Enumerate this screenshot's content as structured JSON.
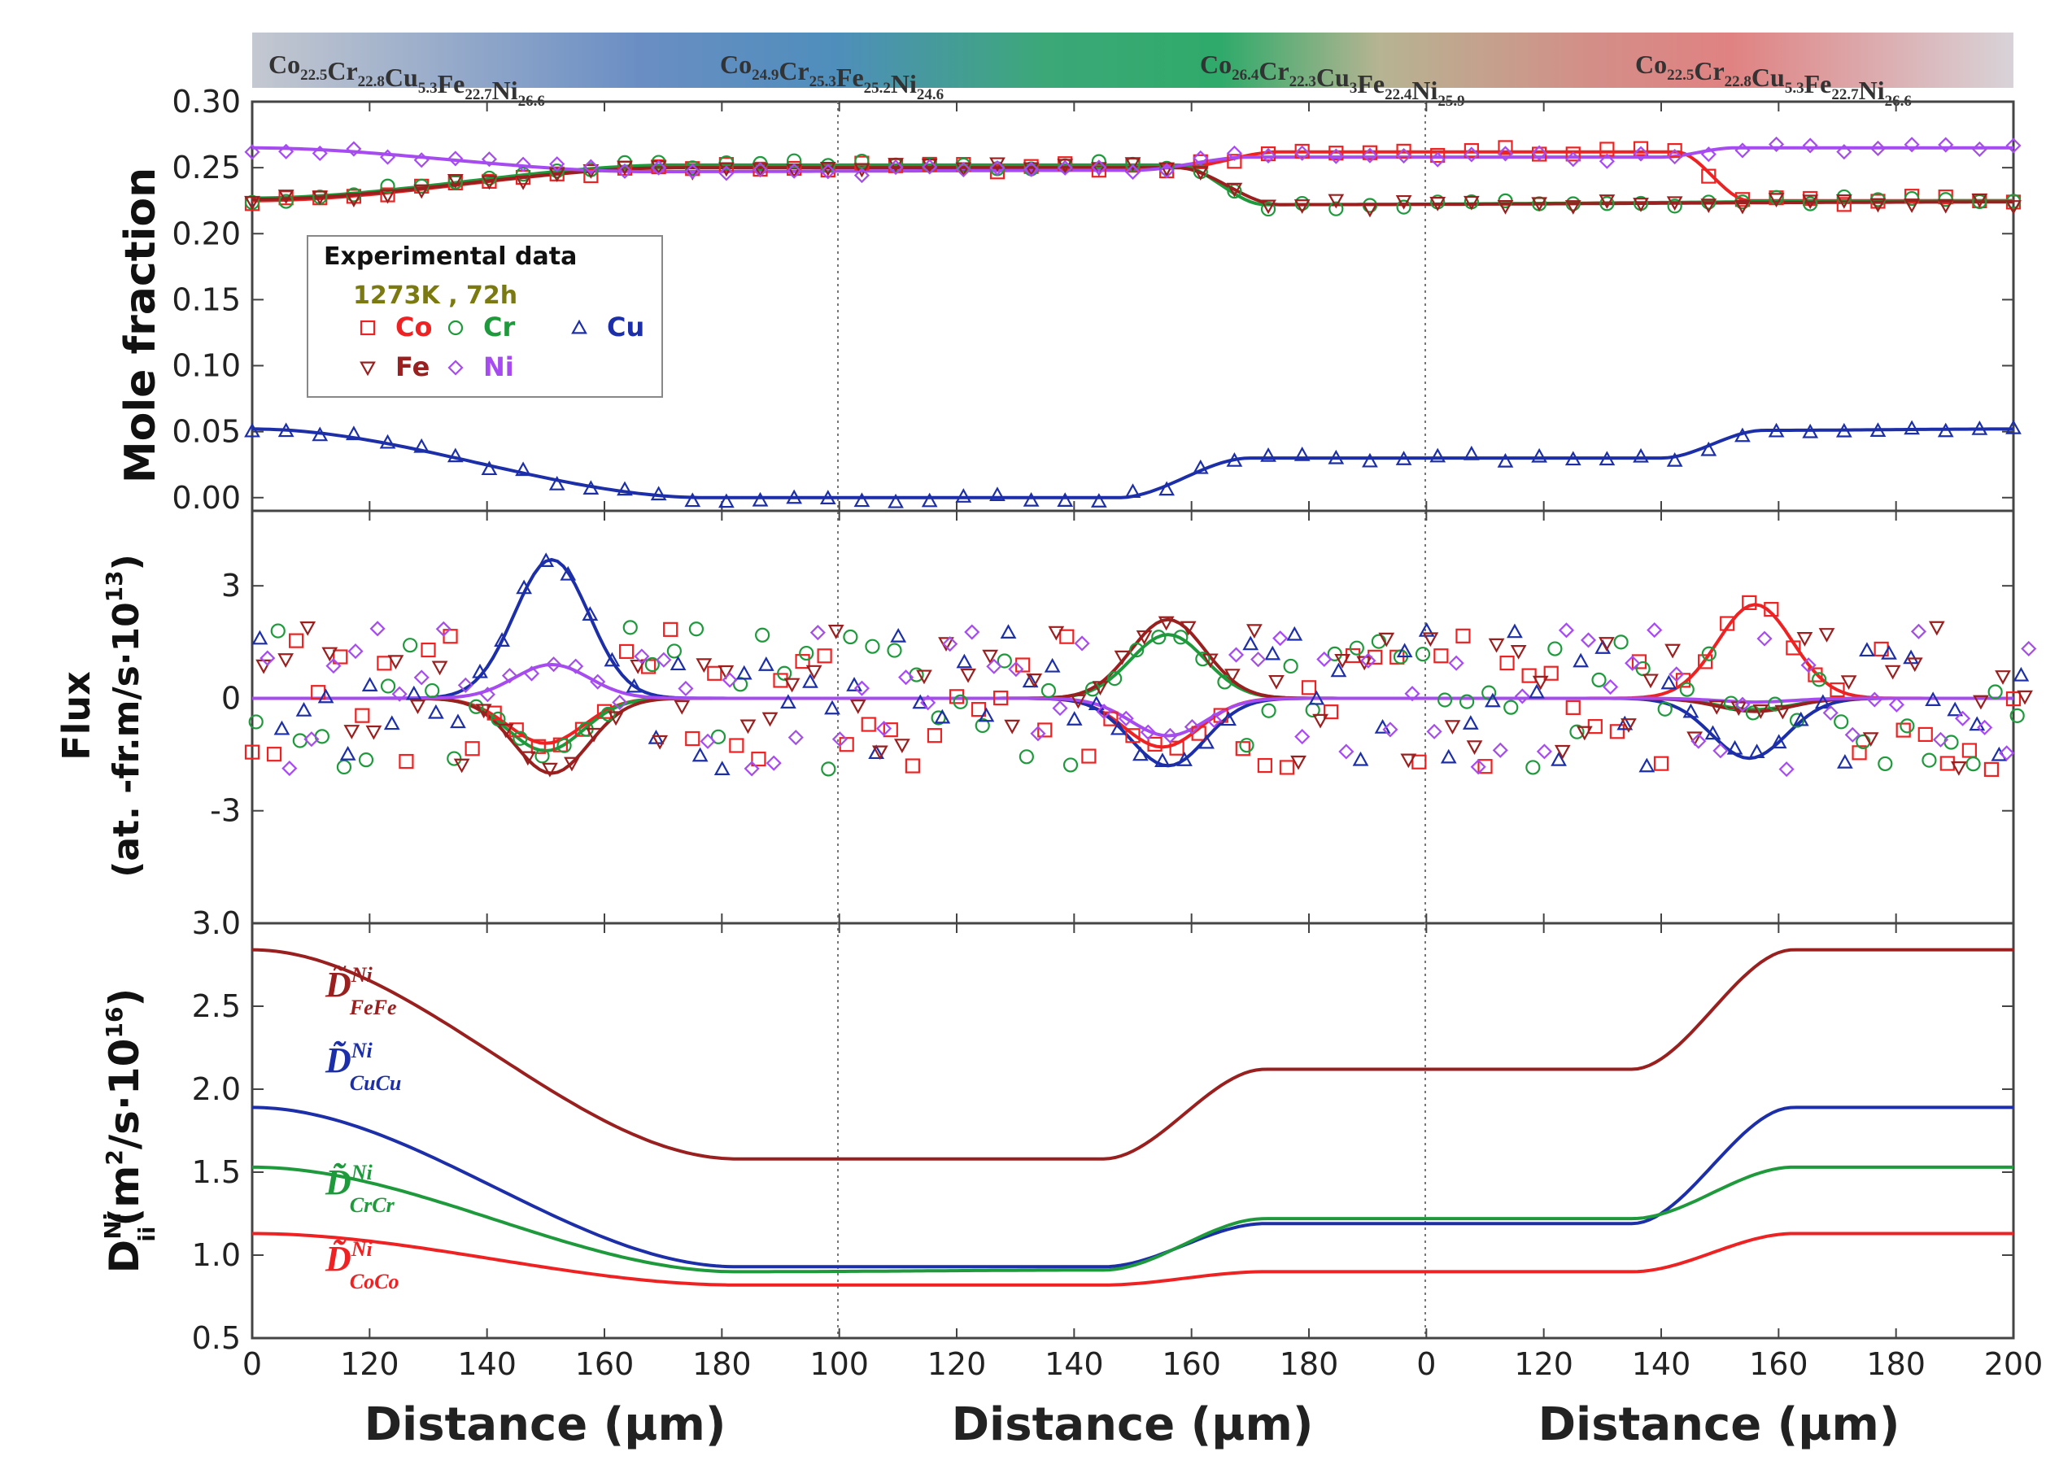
{
  "colors": {
    "Co": "#ee2222",
    "Cr": "#1e9a3c",
    "Cu": "#1c2fa8",
    "Fe": "#9a1f1f",
    "Ni": "#a64bf0",
    "legend_title": "#7a7a10"
  },
  "chart_data": [
    {
      "type": "line",
      "panel": "mole-fraction",
      "x_tick_labels": [
        "0",
        "120",
        "140",
        "160",
        "180",
        "100",
        "120",
        "140",
        "160",
        "180",
        "0",
        "120",
        "140",
        "160",
        "180",
        "200"
      ],
      "xlabels": [
        "Distance (µm)",
        "Distance (µm)",
        "Distance (µm)"
      ],
      "ylabel": "Mole fraction",
      "ylim": [
        -0.01,
        0.3
      ],
      "y_ticks": [
        0.0,
        0.05,
        0.1,
        0.15,
        0.2,
        0.25,
        0.3
      ],
      "y_tick_labels": [
        "0.00",
        "0.05",
        "0.10",
        "0.15",
        "0.20",
        "0.25",
        "0.30"
      ],
      "composition_labels": [
        {
          "parts": [
            [
              "Co",
              "22.5"
            ],
            [
              "Cr",
              "22.8"
            ],
            [
              "Cu",
              "5.3"
            ],
            [
              "Fe",
              "22.7"
            ],
            [
              "Ni",
              "26.6"
            ]
          ]
        },
        {
          "parts": [
            [
              "Co",
              "24.9"
            ],
            [
              "Cr",
              "25.3"
            ],
            [
              "Fe",
              "25.2"
            ],
            [
              "Ni",
              "24.6"
            ]
          ]
        },
        {
          "parts": [
            [
              "Co",
              "26.4"
            ],
            [
              "Cr",
              "22.3"
            ],
            [
              "Cu",
              "3"
            ],
            [
              "Fe",
              "22.4"
            ],
            [
              "Ni",
              "25.9"
            ]
          ]
        },
        {
          "parts": [
            [
              "Co",
              "22.5"
            ],
            [
              "Cr",
              "22.8"
            ],
            [
              "Cu",
              "5.3"
            ],
            [
              "Fe",
              "22.7"
            ],
            [
              "Ni",
              "26.6"
            ]
          ]
        }
      ],
      "legend": {
        "title": "Experimental data",
        "conditions": "1273K , 72h",
        "entries": [
          {
            "name": "Co",
            "marker": "square"
          },
          {
            "name": "Cr",
            "marker": "circle"
          },
          {
            "name": "Cu",
            "marker": "triangle-up"
          },
          {
            "name": "Fe",
            "marker": "triangle-down"
          },
          {
            "name": "Ni",
            "marker": "diamond"
          }
        ]
      },
      "x_domain": [
        0,
        600
      ],
      "series": [
        {
          "name": "Co",
          "profile": [
            [
              0,
              0.225
            ],
            [
              145,
              0.25
            ],
            [
              315,
              0.25
            ],
            [
              350,
              0.262
            ],
            [
              485,
              0.262
            ],
            [
              510,
              0.225
            ],
            [
              600,
              0.225
            ]
          ]
        },
        {
          "name": "Cr",
          "profile": [
            [
              0,
              0.227
            ],
            [
              145,
              0.252
            ],
            [
              315,
              0.252
            ],
            [
              345,
              0.222
            ],
            [
              600,
              0.225
            ]
          ]
        },
        {
          "name": "Cu",
          "profile": [
            [
              0,
              0.052
            ],
            [
              155,
              0.0
            ],
            [
              295,
              0.0
            ],
            [
              340,
              0.03
            ],
            [
              480,
              0.03
            ],
            [
              515,
              0.051
            ],
            [
              600,
              0.052
            ]
          ]
        },
        {
          "name": "Fe",
          "profile": [
            [
              0,
              0.226
            ],
            [
              145,
              0.25
            ],
            [
              315,
              0.25
            ],
            [
              350,
              0.222
            ],
            [
              600,
              0.224
            ]
          ]
        },
        {
          "name": "Ni",
          "profile": [
            [
              0,
              0.265
            ],
            [
              135,
              0.247
            ],
            [
              300,
              0.248
            ],
            [
              340,
              0.258
            ],
            [
              480,
              0.258
            ],
            [
              505,
              0.265
            ],
            [
              600,
              0.265
            ]
          ]
        }
      ]
    },
    {
      "type": "line",
      "panel": "flux",
      "ylabel_line1": "Flux",
      "ylabel_line2": "(at. -fr.m/s·10",
      "ylabel_sup": "13",
      "ylabel_close": ")",
      "ylim": [
        -6.0,
        5.0
      ],
      "y_ticks": [
        -3,
        0,
        3
      ],
      "y_tick_labels": [
        "-3",
        "0",
        "3"
      ],
      "peaks": [
        {
          "name": "Co",
          "values": [
            [
              100,
              -1.2
            ],
            [
              310,
              -1.3
            ],
            [
              512,
              2.5
            ]
          ]
        },
        {
          "name": "Cr",
          "values": [
            [
              100,
              -1.4
            ],
            [
              312,
              1.7
            ],
            [
              512,
              -0.3
            ]
          ]
        },
        {
          "name": "Cu",
          "values": [
            [
              102,
              3.7
            ],
            [
              312,
              -1.8
            ],
            [
              510,
              -1.6
            ]
          ]
        },
        {
          "name": "Fe",
          "values": [
            [
              102,
              -2.0
            ],
            [
              312,
              2.1
            ],
            [
              512,
              -0.35
            ]
          ]
        },
        {
          "name": "Ni",
          "values": [
            [
              102,
              0.9
            ],
            [
              312,
              -1.0
            ],
            [
              512,
              -0.1
            ]
          ]
        }
      ]
    },
    {
      "type": "line",
      "panel": "diffusivity",
      "ylabel_main": "D",
      "ylabel_sup": "Ni",
      "ylabel_sub": "ii",
      "ylabel_units_open": "(m",
      "ylabel_units_sup2": "2",
      "ylabel_units_mid": "/s·10",
      "ylabel_units_sup16": "16",
      "ylabel_units_close": ")",
      "ylim": [
        0.5,
        3.0
      ],
      "y_ticks": [
        0.5,
        1.0,
        1.5,
        2.0,
        2.5,
        3.0
      ],
      "y_tick_labels": [
        "0.5",
        "1.0",
        "1.5",
        "2.0",
        "2.5",
        "3.0"
      ],
      "series": [
        {
          "name": "FeFe",
          "label_sup": "Ni",
          "label_sub": "FeFe",
          "color_key": "Fe",
          "profile": [
            [
              0,
              2.84
            ],
            [
              165,
              1.58
            ],
            [
              290,
              1.58
            ],
            [
              345,
              2.12
            ],
            [
              470,
              2.12
            ],
            [
              525,
              2.84
            ],
            [
              600,
              2.84
            ]
          ]
        },
        {
          "name": "CuCu",
          "label_sup": "Ni",
          "label_sub": "CuCu",
          "color_key": "Cu",
          "profile": [
            [
              0,
              1.89
            ],
            [
              165,
              0.93
            ],
            [
              290,
              0.93
            ],
            [
              345,
              1.19
            ],
            [
              470,
              1.19
            ],
            [
              525,
              1.89
            ],
            [
              600,
              1.89
            ]
          ]
        },
        {
          "name": "CrCr",
          "label_sup": "Ni",
          "label_sub": "CrCr",
          "color_key": "Cr",
          "profile": [
            [
              0,
              1.53
            ],
            [
              165,
              0.9
            ],
            [
              290,
              0.91
            ],
            [
              345,
              1.22
            ],
            [
              470,
              1.22
            ],
            [
              525,
              1.53
            ],
            [
              600,
              1.53
            ]
          ]
        },
        {
          "name": "CoCo",
          "label_sup": "Ni",
          "label_sub": "CoCo",
          "color_key": "Co",
          "profile": [
            [
              0,
              1.13
            ],
            [
              165,
              0.82
            ],
            [
              290,
              0.82
            ],
            [
              345,
              0.9
            ],
            [
              470,
              0.9
            ],
            [
              525,
              1.13
            ],
            [
              600,
              1.13
            ]
          ]
        }
      ]
    }
  ]
}
